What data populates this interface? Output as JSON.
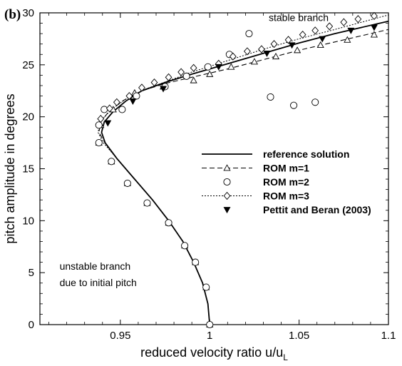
{
  "panel_label": "(b)",
  "chart_data": {
    "type": "line",
    "xlabel_main": "reduced velocity ratio u/u",
    "xlabel_sub": "L",
    "ylabel": "pitch amplitude in degrees",
    "xlim": [
      0.905,
      1.1
    ],
    "ylim": [
      0,
      30
    ],
    "xticks": [
      0.95,
      1.0,
      1.05,
      1.1
    ],
    "xtick_labels": [
      "0.95",
      "1",
      "1.05",
      "1.1"
    ],
    "yticks": [
      0,
      5,
      10,
      15,
      20,
      25,
      30
    ],
    "ytick_labels": [
      "0",
      "5",
      "10",
      "15",
      "20",
      "25",
      "30"
    ],
    "grid": false,
    "legend_position": "center-right",
    "annotations": [
      {
        "text": "stable branch",
        "x": 1.033,
        "y": 29.2
      },
      {
        "text": "unstable branch",
        "x": 0.916,
        "y": 5.3
      },
      {
        "text": "due to initial pitch",
        "x": 0.916,
        "y": 3.7
      }
    ],
    "series": [
      {
        "name": "reference solution",
        "style": "solid",
        "marker": "none",
        "color": "#000000",
        "points": [
          [
            1.0,
            0
          ],
          [
            0.999,
            2
          ],
          [
            0.996,
            4
          ],
          [
            0.991,
            6
          ],
          [
            0.985,
            8
          ],
          [
            0.977,
            10
          ],
          [
            0.968,
            12
          ],
          [
            0.958,
            14
          ],
          [
            0.948,
            16
          ],
          [
            0.9415,
            17.5
          ],
          [
            0.9395,
            18.5
          ],
          [
            0.941,
            19.5
          ],
          [
            0.946,
            20.5
          ],
          [
            0.953,
            21.5
          ],
          [
            0.962,
            22.5
          ],
          [
            0.975,
            23.3
          ],
          [
            0.99,
            24.1
          ],
          [
            1.01,
            25.1
          ],
          [
            1.03,
            26.1
          ],
          [
            1.05,
            27.1
          ],
          [
            1.07,
            28.0
          ],
          [
            1.1,
            29.2
          ]
        ]
      },
      {
        "name": "ROM m=1",
        "style": "dash",
        "marker": "triangle",
        "color": "#000000",
        "points": [
          [
            1.0,
            0
          ],
          [
            0.999,
            2
          ],
          [
            0.996,
            4
          ],
          [
            0.991,
            6
          ],
          [
            0.985,
            8
          ],
          [
            0.977,
            10
          ],
          [
            0.968,
            12
          ],
          [
            0.958,
            14
          ],
          [
            0.948,
            16
          ],
          [
            0.941,
            17.6
          ],
          [
            0.938,
            18.5
          ],
          [
            0.939,
            19.5
          ],
          [
            0.944,
            20.6
          ],
          [
            0.952,
            21.6
          ],
          [
            0.962,
            22.5
          ],
          [
            0.975,
            23.2
          ],
          [
            0.99,
            23.8
          ],
          [
            1.01,
            24.6
          ],
          [
            1.03,
            25.5
          ],
          [
            1.05,
            26.4
          ],
          [
            1.07,
            27.2
          ],
          [
            1.1,
            28.4
          ]
        ],
        "markers": [
          [
            1.0,
            0
          ],
          [
            0.998,
            3.6
          ],
          [
            0.992,
            6
          ],
          [
            0.986,
            7.6
          ],
          [
            0.977,
            9.8
          ],
          [
            0.965,
            11.7
          ],
          [
            0.954,
            13.6
          ],
          [
            0.945,
            15.7
          ],
          [
            0.938,
            17.5
          ],
          [
            0.939,
            19.2
          ],
          [
            0.946,
            20.7
          ],
          [
            0.958,
            22.3
          ],
          [
            0.974,
            22.9
          ],
          [
            0.991,
            23.5
          ],
          [
            1.0,
            24.1
          ],
          [
            1.012,
            24.8
          ],
          [
            1.025,
            25.3
          ],
          [
            1.037,
            25.8
          ],
          [
            1.049,
            26.4
          ],
          [
            1.062,
            26.9
          ],
          [
            1.077,
            27.4
          ],
          [
            1.092,
            27.9
          ]
        ]
      },
      {
        "name": "ROM m=2",
        "style": "none",
        "marker": "circle",
        "color": "#000000",
        "points": [
          [
            1.0,
            0
          ],
          [
            0.998,
            3.6
          ],
          [
            0.992,
            6
          ],
          [
            0.986,
            7.6
          ],
          [
            0.977,
            9.8
          ],
          [
            0.965,
            11.7
          ],
          [
            0.954,
            13.6
          ],
          [
            0.945,
            15.7
          ],
          [
            0.938,
            17.5
          ],
          [
            0.938,
            19.2
          ],
          [
            0.941,
            20.7
          ],
          [
            0.951,
            20.7
          ],
          [
            0.959,
            22.0
          ],
          [
            0.975,
            22.9
          ],
          [
            0.987,
            23.9
          ],
          [
            0.999,
            24.8
          ],
          [
            1.011,
            26.0
          ],
          [
            1.022,
            28.0
          ],
          [
            1.034,
            21.9
          ],
          [
            1.047,
            21.1
          ],
          [
            1.059,
            21.4
          ]
        ]
      },
      {
        "name": "ROM m=3",
        "style": "dot",
        "marker": "diamond",
        "color": "#000000",
        "points": [
          [
            1.0,
            0
          ],
          [
            0.999,
            2
          ],
          [
            0.996,
            4
          ],
          [
            0.991,
            6
          ],
          [
            0.985,
            8
          ],
          [
            0.977,
            10
          ],
          [
            0.968,
            12
          ],
          [
            0.958,
            14
          ],
          [
            0.948,
            16
          ],
          [
            0.9405,
            17.5
          ],
          [
            0.9375,
            18.5
          ],
          [
            0.939,
            19.6
          ],
          [
            0.945,
            20.7
          ],
          [
            0.953,
            21.7
          ],
          [
            0.963,
            22.6
          ],
          [
            0.976,
            23.4
          ],
          [
            0.99,
            24.3
          ],
          [
            1.01,
            25.4
          ],
          [
            1.03,
            26.5
          ],
          [
            1.05,
            27.5
          ],
          [
            1.07,
            28.4
          ],
          [
            1.1,
            29.8
          ]
        ],
        "markers": [
          [
            0.939,
            19.8
          ],
          [
            0.944,
            20.8
          ],
          [
            0.948,
            21.4
          ],
          [
            0.955,
            22.0
          ],
          [
            0.962,
            22.8
          ],
          [
            0.969,
            23.3
          ],
          [
            0.977,
            23.8
          ],
          [
            0.984,
            24.3
          ],
          [
            0.991,
            24.7
          ],
          [
            1.005,
            25.1
          ],
          [
            1.013,
            25.8
          ],
          [
            1.021,
            26.3
          ],
          [
            1.029,
            26.5
          ],
          [
            1.036,
            27.0
          ],
          [
            1.044,
            27.4
          ],
          [
            1.052,
            27.9
          ],
          [
            1.059,
            28.3
          ],
          [
            1.067,
            28.7
          ],
          [
            1.075,
            29.1
          ],
          [
            1.083,
            29.4
          ],
          [
            1.092,
            29.7
          ]
        ]
      },
      {
        "name": "Pettit and Beran (2003)",
        "style": "none",
        "marker": "filled-triangle-down",
        "color": "#000000",
        "points": [
          [
            0.943,
            19.4
          ],
          [
            0.957,
            21.5
          ],
          [
            0.974,
            22.7
          ],
          [
            1.005,
            24.8
          ],
          [
            1.032,
            26.1
          ],
          [
            1.046,
            26.9
          ],
          [
            1.063,
            27.5
          ],
          [
            1.079,
            28.3
          ],
          [
            1.092,
            28.6
          ]
        ]
      }
    ]
  }
}
